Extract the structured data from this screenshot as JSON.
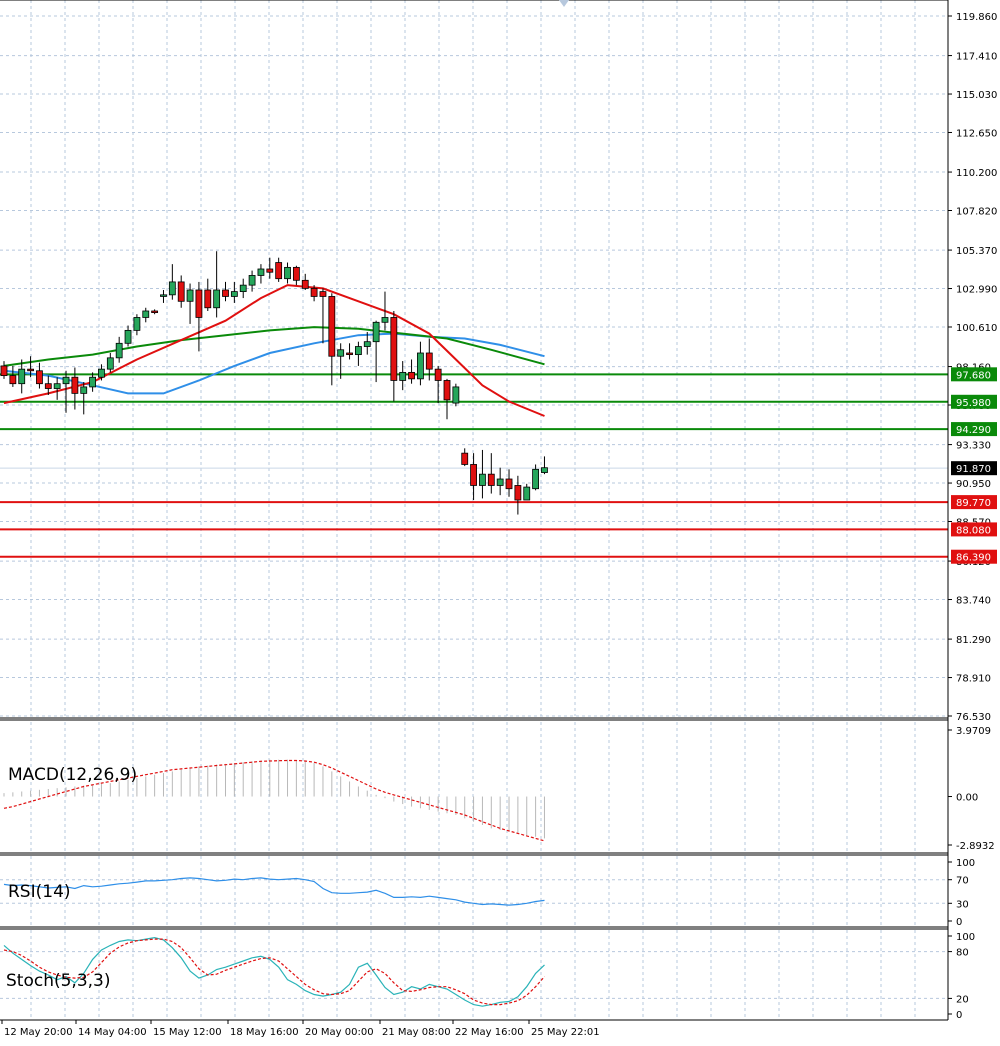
{
  "chart_data": {
    "type": "candlestick",
    "colors": {
      "bull": "#26a65b",
      "bear": "#e01010",
      "ma_fast": "#e01010",
      "ma_mid": "#0a8a0a",
      "ma_slow": "#2f8fe8",
      "support": "#0a8a0a",
      "resistance": "#e01010",
      "grid": "#b7c8dd",
      "current_price_bg": "#000000"
    },
    "price_axis": {
      "ylim": [
        76.53,
        119.86
      ],
      "ticks": [
        "119.860",
        "117.410",
        "115.030",
        "112.650",
        "110.200",
        "107.820",
        "105.370",
        "102.990",
        "100.610",
        "98.160",
        "95.780",
        "93.330",
        "90.950",
        "88.570",
        "86.120",
        "83.740",
        "81.290",
        "78.910",
        "76.530"
      ]
    },
    "time_axis": {
      "labels": [
        "12 May 20:00",
        "14 May 04:00",
        "15 May 12:00",
        "18 May 16:00",
        "20 May 00:00",
        "21 May 08:00",
        "22 May 16:00",
        "25 May 22:01"
      ]
    },
    "candles": [
      {
        "o": 98.2,
        "h": 98.5,
        "l": 97.4,
        "c": 97.6
      },
      {
        "o": 97.6,
        "h": 98.2,
        "l": 96.9,
        "c": 97.1
      },
      {
        "o": 97.1,
        "h": 98.6,
        "l": 96.5,
        "c": 98.0
      },
      {
        "o": 98.0,
        "h": 98.8,
        "l": 97.5,
        "c": 97.9
      },
      {
        "o": 97.9,
        "h": 98.4,
        "l": 96.8,
        "c": 97.1
      },
      {
        "o": 97.1,
        "h": 97.6,
        "l": 96.4,
        "c": 96.8
      },
      {
        "o": 96.8,
        "h": 97.5,
        "l": 96.1,
        "c": 97.1
      },
      {
        "o": 97.1,
        "h": 97.9,
        "l": 95.3,
        "c": 97.5
      },
      {
        "o": 97.5,
        "h": 98.1,
        "l": 95.5,
        "c": 96.5
      },
      {
        "o": 96.5,
        "h": 97.2,
        "l": 95.2,
        "c": 96.9
      },
      {
        "o": 96.9,
        "h": 97.8,
        "l": 96.6,
        "c": 97.5
      },
      {
        "o": 97.5,
        "h": 98.3,
        "l": 97.3,
        "c": 98.0
      },
      {
        "o": 98.0,
        "h": 99.0,
        "l": 97.8,
        "c": 98.7
      },
      {
        "o": 98.7,
        "h": 100.0,
        "l": 98.4,
        "c": 99.6
      },
      {
        "o": 99.6,
        "h": 100.7,
        "l": 99.4,
        "c": 100.4
      },
      {
        "o": 100.4,
        "h": 101.4,
        "l": 100.1,
        "c": 101.2
      },
      {
        "o": 101.2,
        "h": 101.8,
        "l": 100.9,
        "c": 101.6
      },
      {
        "o": 101.6,
        "h": 101.7,
        "l": 101.4,
        "c": 101.5
      },
      {
        "o": 102.5,
        "h": 102.9,
        "l": 102.1,
        "c": 102.6
      },
      {
        "o": 102.6,
        "h": 104.5,
        "l": 102.3,
        "c": 103.4
      },
      {
        "o": 103.4,
        "h": 103.8,
        "l": 101.8,
        "c": 102.2
      },
      {
        "o": 102.2,
        "h": 103.3,
        "l": 100.8,
        "c": 102.9
      },
      {
        "o": 102.9,
        "h": 103.4,
        "l": 99.1,
        "c": 101.2
      },
      {
        "o": 102.9,
        "h": 103.6,
        "l": 101.6,
        "c": 101.8
      },
      {
        "o": 101.8,
        "h": 105.3,
        "l": 101.2,
        "c": 102.9
      },
      {
        "o": 102.9,
        "h": 103.4,
        "l": 102.2,
        "c": 102.5
      },
      {
        "o": 102.5,
        "h": 103.4,
        "l": 102.1,
        "c": 102.8
      },
      {
        "o": 102.8,
        "h": 103.6,
        "l": 102.4,
        "c": 103.2
      },
      {
        "o": 103.2,
        "h": 104.1,
        "l": 102.8,
        "c": 103.8
      },
      {
        "o": 103.8,
        "h": 104.5,
        "l": 103.3,
        "c": 104.2
      },
      {
        "o": 104.2,
        "h": 104.9,
        "l": 103.6,
        "c": 104.0
      },
      {
        "o": 104.6,
        "h": 104.9,
        "l": 103.4,
        "c": 103.6
      },
      {
        "o": 103.6,
        "h": 104.6,
        "l": 103.3,
        "c": 104.3
      },
      {
        "o": 104.3,
        "h": 104.4,
        "l": 103.2,
        "c": 103.5
      },
      {
        "o": 103.5,
        "h": 103.9,
        "l": 102.9,
        "c": 103.0
      },
      {
        "o": 103.0,
        "h": 103.2,
        "l": 102.2,
        "c": 102.5
      },
      {
        "o": 102.8,
        "h": 103.0,
        "l": 99.6,
        "c": 102.5
      },
      {
        "o": 102.5,
        "h": 102.7,
        "l": 97.0,
        "c": 98.8
      },
      {
        "o": 98.8,
        "h": 99.6,
        "l": 97.4,
        "c": 99.2
      },
      {
        "o": 99.0,
        "h": 99.6,
        "l": 98.6,
        "c": 98.9
      },
      {
        "o": 98.9,
        "h": 99.7,
        "l": 98.2,
        "c": 99.4
      },
      {
        "o": 99.4,
        "h": 100.3,
        "l": 98.9,
        "c": 99.7
      },
      {
        "o": 99.7,
        "h": 101.0,
        "l": 97.2,
        "c": 100.9
      },
      {
        "o": 100.9,
        "h": 102.8,
        "l": 100.4,
        "c": 101.2
      },
      {
        "o": 101.2,
        "h": 101.6,
        "l": 96.0,
        "c": 97.3
      },
      {
        "o": 97.3,
        "h": 98.5,
        "l": 96.7,
        "c": 97.8
      },
      {
        "o": 97.8,
        "h": 98.6,
        "l": 97.1,
        "c": 97.4
      },
      {
        "o": 97.4,
        "h": 99.7,
        "l": 97.0,
        "c": 99.0
      },
      {
        "o": 99.0,
        "h": 99.9,
        "l": 97.3,
        "c": 98.0
      },
      {
        "o": 98.0,
        "h": 98.2,
        "l": 95.9,
        "c": 97.3
      },
      {
        "o": 97.3,
        "h": 97.4,
        "l": 94.9,
        "c": 96.1
      },
      {
        "o": 95.9,
        "h": 97.1,
        "l": 95.7,
        "c": 96.9
      },
      {
        "o": 92.8,
        "h": 93.1,
        "l": 92.0,
        "c": 92.1
      },
      {
        "o": 92.1,
        "h": 92.8,
        "l": 89.9,
        "c": 90.8
      },
      {
        "o": 90.8,
        "h": 93.0,
        "l": 90.0,
        "c": 91.5
      },
      {
        "o": 91.5,
        "h": 92.8,
        "l": 90.3,
        "c": 90.8
      },
      {
        "o": 90.8,
        "h": 91.9,
        "l": 90.2,
        "c": 91.2
      },
      {
        "o": 91.2,
        "h": 91.8,
        "l": 90.1,
        "c": 90.6
      },
      {
        "o": 90.8,
        "h": 91.4,
        "l": 89.0,
        "c": 89.9
      },
      {
        "o": 89.9,
        "h": 90.9,
        "l": 89.9,
        "c": 90.7
      },
      {
        "o": 90.6,
        "h": 92.1,
        "l": 90.5,
        "c": 91.8
      },
      {
        "o": 91.6,
        "h": 92.6,
        "l": 91.5,
        "c": 91.9
      }
    ],
    "ma_fast": [
      {
        "i": 0,
        "v": 95.9
      },
      {
        "i": 5,
        "v": 96.5
      },
      {
        "i": 10,
        "v": 97.2
      },
      {
        "i": 15,
        "v": 98.6
      },
      {
        "i": 20,
        "v": 99.8
      },
      {
        "i": 25,
        "v": 101.0
      },
      {
        "i": 29,
        "v": 102.4
      },
      {
        "i": 32,
        "v": 103.2
      },
      {
        "i": 36,
        "v": 103.0
      },
      {
        "i": 40,
        "v": 102.2
      },
      {
        "i": 44,
        "v": 101.4
      },
      {
        "i": 48,
        "v": 100.2
      },
      {
        "i": 51,
        "v": 98.6
      },
      {
        "i": 54,
        "v": 97.0
      },
      {
        "i": 57,
        "v": 96.0
      },
      {
        "i": 61,
        "v": 95.1
      }
    ],
    "ma_mid": [
      {
        "i": 0,
        "v": 98.2
      },
      {
        "i": 5,
        "v": 98.6
      },
      {
        "i": 10,
        "v": 98.9
      },
      {
        "i": 15,
        "v": 99.4
      },
      {
        "i": 20,
        "v": 99.8
      },
      {
        "i": 25,
        "v": 100.1
      },
      {
        "i": 30,
        "v": 100.4
      },
      {
        "i": 35,
        "v": 100.6
      },
      {
        "i": 40,
        "v": 100.5
      },
      {
        "i": 45,
        "v": 100.2
      },
      {
        "i": 50,
        "v": 99.9
      },
      {
        "i": 55,
        "v": 99.2
      },
      {
        "i": 61,
        "v": 98.3
      }
    ],
    "ma_slow": [
      {
        "i": 0,
        "v": 97.9
      },
      {
        "i": 5,
        "v": 97.6
      },
      {
        "i": 10,
        "v": 97.0
      },
      {
        "i": 14,
        "v": 96.5
      },
      {
        "i": 18,
        "v": 96.5
      },
      {
        "i": 22,
        "v": 97.3
      },
      {
        "i": 26,
        "v": 98.2
      },
      {
        "i": 30,
        "v": 99.0
      },
      {
        "i": 35,
        "v": 99.6
      },
      {
        "i": 40,
        "v": 100.1
      },
      {
        "i": 44,
        "v": 100.2
      },
      {
        "i": 48,
        "v": 100.0
      },
      {
        "i": 52,
        "v": 99.9
      },
      {
        "i": 56,
        "v": 99.5
      },
      {
        "i": 61,
        "v": 98.8
      }
    ],
    "levels": [
      {
        "value": 97.68,
        "label": "97.680",
        "kind": "support"
      },
      {
        "value": 95.98,
        "label": "95.980",
        "kind": "support"
      },
      {
        "value": 94.29,
        "label": "94.290",
        "kind": "support"
      },
      {
        "value": 89.77,
        "label": "89.770",
        "kind": "resistance"
      },
      {
        "value": 88.08,
        "label": "88.080",
        "kind": "resistance"
      },
      {
        "value": 86.39,
        "label": "86.390",
        "kind": "resistance"
      }
    ],
    "current_price": {
      "value": 91.87,
      "label": "91.870"
    },
    "macd": {
      "label": "MACD(12,26,9)",
      "ylim": [
        -2.8932,
        3.9709
      ],
      "ticks": [
        "3.9709",
        "0.00",
        "-2.8932"
      ],
      "hist": [
        0.2,
        0.25,
        0.3,
        0.35,
        0.4,
        0.45,
        0.5,
        0.55,
        0.6,
        0.65,
        0.7,
        0.75,
        0.8,
        0.9,
        1.0,
        1.1,
        1.2,
        1.3,
        1.4,
        1.5,
        1.6,
        1.7,
        1.8,
        1.85,
        1.9,
        1.95,
        2.0,
        2.05,
        2.1,
        2.15,
        2.2,
        2.2,
        2.2,
        2.15,
        2.1,
        2.0,
        1.8,
        1.5,
        1.2,
        0.9,
        0.6,
        0.35,
        0.1,
        -0.1,
        -0.3,
        -0.45,
        -0.6,
        -0.7,
        -0.8,
        -0.9,
        -1.0,
        -1.1,
        -1.3,
        -1.5,
        -1.7,
        -1.9,
        -2.0,
        -2.1,
        -2.2,
        -2.3,
        -2.4,
        -2.5
      ],
      "signal": [
        -0.7,
        -0.6,
        -0.45,
        -0.3,
        -0.15,
        0.0,
        0.15,
        0.3,
        0.45,
        0.6,
        0.7,
        0.8,
        0.9,
        1.0,
        1.1,
        1.2,
        1.3,
        1.4,
        1.5,
        1.6,
        1.65,
        1.7,
        1.75,
        1.8,
        1.85,
        1.9,
        1.95,
        2.0,
        2.05,
        2.1,
        2.12,
        2.14,
        2.15,
        2.15,
        2.12,
        2.05,
        1.9,
        1.7,
        1.45,
        1.2,
        0.95,
        0.7,
        0.45,
        0.25,
        0.1,
        -0.05,
        -0.2,
        -0.35,
        -0.5,
        -0.65,
        -0.8,
        -0.95,
        -1.1,
        -1.3,
        -1.5,
        -1.7,
        -1.9,
        -2.05,
        -2.2,
        -2.35,
        -2.5,
        -2.65
      ]
    },
    "rsi": {
      "label": "RSI(14)",
      "ylim": [
        0,
        100
      ],
      "ticks": [
        "100",
        "70",
        "30",
        "0"
      ],
      "values": [
        62,
        60,
        61,
        60,
        58,
        56,
        57,
        58,
        55,
        60,
        58,
        59,
        61,
        63,
        64,
        66,
        68,
        68,
        69,
        70,
        72,
        73,
        72,
        70,
        68,
        69,
        71,
        70,
        72,
        73,
        71,
        70,
        71,
        72,
        70,
        67,
        55,
        48,
        47,
        47,
        48,
        49,
        52,
        47,
        40,
        40,
        41,
        40,
        42,
        40,
        38,
        36,
        32,
        30,
        28,
        29,
        28,
        27,
        28,
        30,
        33,
        35
      ]
    },
    "stoch": {
      "label": "Stoch(5,3,3)",
      "ylim": [
        0,
        100
      ],
      "ticks": [
        "100",
        "80",
        "20",
        "0"
      ],
      "k": [
        88,
        78,
        70,
        62,
        55,
        50,
        44,
        48,
        40,
        52,
        70,
        82,
        88,
        93,
        95,
        94,
        96,
        98,
        95,
        85,
        72,
        55,
        46,
        50,
        57,
        60,
        64,
        68,
        72,
        74,
        70,
        60,
        44,
        38,
        30,
        25,
        23,
        25,
        28,
        38,
        60,
        65,
        50,
        34,
        25,
        28,
        35,
        32,
        38,
        35,
        32,
        25,
        18,
        12,
        10,
        12,
        15,
        16,
        22,
        35,
        52,
        63
      ],
      "d": [
        82,
        80,
        75,
        68,
        60,
        54,
        50,
        47,
        46,
        47,
        54,
        66,
        78,
        86,
        91,
        94,
        95,
        96,
        96,
        93,
        85,
        72,
        58,
        50,
        51,
        56,
        60,
        64,
        68,
        71,
        72,
        68,
        58,
        48,
        38,
        31,
        26,
        25,
        26,
        30,
        42,
        54,
        58,
        52,
        40,
        30,
        29,
        31,
        34,
        35,
        35,
        31,
        26,
        18,
        14,
        12,
        12,
        14,
        17,
        24,
        35,
        48
      ]
    }
  }
}
